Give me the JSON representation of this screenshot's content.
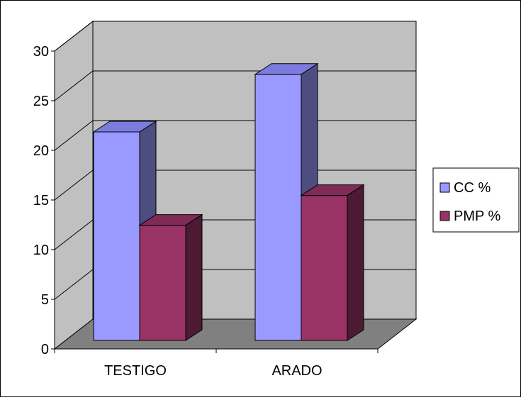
{
  "chart_data": {
    "type": "bar",
    "style": "3d-clustered-column",
    "categories": [
      "TESTIGO",
      "ARADO"
    ],
    "series": [
      {
        "name": "CC %",
        "values": [
          21,
          26.8
        ],
        "color": "#9999FF",
        "side_color": "#4D4D80",
        "top_color": "#7C7CE0"
      },
      {
        "name": "PMP %",
        "values": [
          11.6,
          14.6
        ],
        "color": "#993366",
        "side_color": "#4D1A33",
        "top_color": "#802B55"
      }
    ],
    "y_ticks": [
      0,
      5,
      10,
      15,
      20,
      25,
      30
    ],
    "ylim": [
      0,
      30
    ],
    "grid": true,
    "legend_position": "right",
    "wall_color": "#C0C0C0",
    "floor_color": "#808080"
  }
}
